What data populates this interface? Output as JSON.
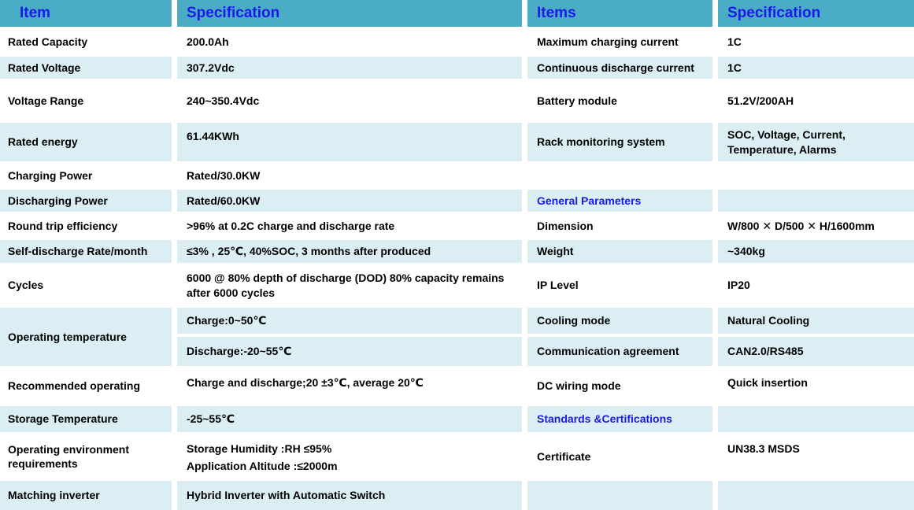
{
  "colors": {
    "header-bg": "#4BACC6",
    "row-alt-bg": "#DAEEF3",
    "header-text": "#1A1AE8",
    "section-text": "#1A1AE8",
    "body-text": "#000000"
  },
  "header": {
    "item": "Item",
    "spec_left": "Specification",
    "items": "Items",
    "spec_right": "Specification"
  },
  "rows": [
    {
      "left_item": "Rated Capacity",
      "left_spec": "200.0Ah",
      "right_item": "Maximum charging current",
      "right_spec": "1C"
    },
    {
      "left_item": "Rated Voltage",
      "left_spec": "307.2Vdc",
      "right_item": "Continuous discharge current",
      "right_spec": "1C"
    },
    {
      "left_item": "Voltage Range",
      "left_spec": "240~350.4Vdc",
      "right_item": "Battery module",
      "right_spec": "51.2V/200AH"
    },
    {
      "left_item": "Rated  energy",
      "left_spec": "61.44KWh",
      "right_item": "Rack monitoring system",
      "right_spec": "SOC, Voltage, Current, Temperature, Alarms"
    },
    {
      "left_item": "Charging Power",
      "left_spec": "Rated/30.0KW",
      "right_item": "",
      "right_spec": ""
    },
    {
      "left_item": "Discharging Power",
      "left_spec": "Rated/60.0KW",
      "right_item": "General Parameters",
      "right_spec": ""
    },
    {
      "left_item": "Round trip efficiency",
      "left_spec": ">96% at 0.2C charge and discharge rate",
      "right_item": "Dimension",
      "right_spec": "W/800 ✕ D/500 ✕ H/1600mm"
    },
    {
      "left_item": "Self-discharge Rate/month",
      "left_spec": "≤3% , 25℃, 40%SOC, 3 months after produced",
      "right_item": "Weight",
      "right_spec": "~340kg"
    },
    {
      "left_item": "Cycles",
      "left_spec": "6000 @ 80% depth of discharge (DOD) 80% capacity remains after 6000 cycles",
      "right_item": "IP Level",
      "right_spec": "IP20"
    },
    {
      "left_item": "Operating temperature",
      "left_spec": "Charge:0~50℃",
      "right_item": "Cooling mode",
      "right_spec": "Natural Cooling"
    },
    {
      "left_spec": "Discharge:-20~55℃",
      "right_item": "Communication agreement",
      "right_spec": "CAN2.0/RS485"
    },
    {
      "left_item": "Recommended operating",
      "left_spec": "Charge and discharge;20 ±3℃, average 20℃",
      "right_item": "DC wiring mode",
      "right_spec": "Quick insertion"
    },
    {
      "left_item": "Storage Temperature",
      "left_spec": "-25~55℃",
      "right_item": "Standards &Certifications",
      "right_spec": ""
    },
    {
      "left_item": "Operating environment requirements",
      "left_spec_line1": "Storage Humidity :RH ≤95%",
      "left_spec_line2": "Application Altitude :≤2000m",
      "right_item": "Certificate",
      "right_spec": "UN38.3 MSDS"
    },
    {
      "left_item": "Matching inverter",
      "left_spec": "Hybrid Inverter with Automatic Switch",
      "right_item": "",
      "right_spec": ""
    }
  ]
}
